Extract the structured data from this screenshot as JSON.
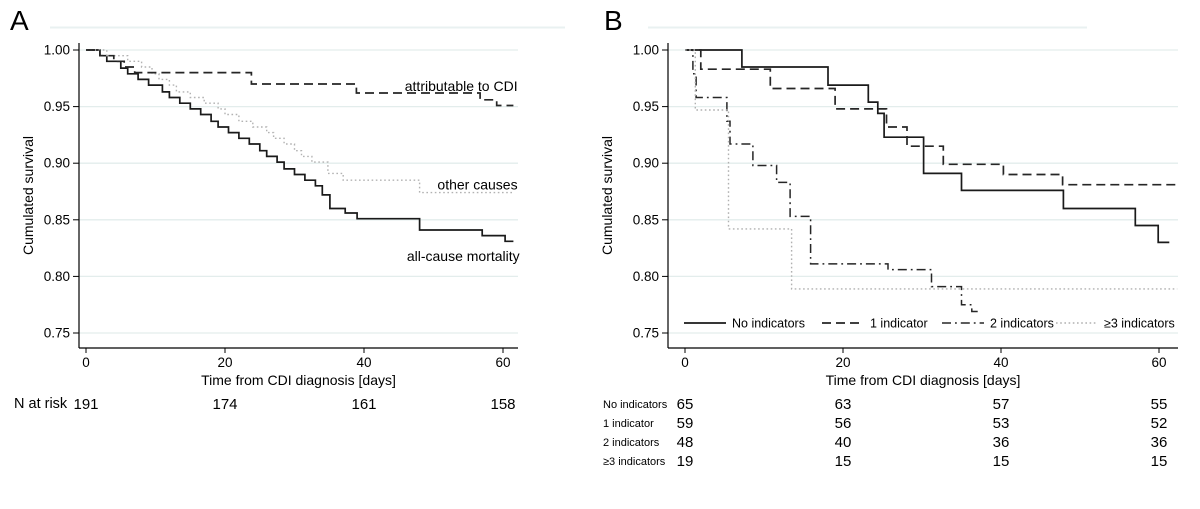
{
  "figure": {
    "background": "#ffffff",
    "grid_color": "#e3edec",
    "rule_color": "#e9f1f1",
    "axis_color": "#000000"
  },
  "chart_data": [
    {
      "type": "line",
      "variant": "kaplan-meier-step",
      "panel_label": "A",
      "ylabel": "Cumulated survival",
      "xlabel": "Time from CDI diagnosis [days]",
      "ylim": [
        0.75,
        1.0
      ],
      "xlim": [
        0,
        62
      ],
      "grid": true,
      "yticks": [
        1.0,
        0.95,
        0.9,
        0.85,
        0.8,
        0.75
      ],
      "ytick_labels": [
        "1.00",
        "0.95",
        "0.90",
        "0.85",
        "0.80",
        "0.75"
      ],
      "xticks": [
        0,
        20,
        40,
        60
      ],
      "xtick_labels": [
        "0",
        "20",
        "40",
        "60"
      ],
      "series": [
        {
          "name": "all-cause mortality",
          "style": "solid",
          "color": "#1a1a1a",
          "width": 1.7,
          "end_day": 61.5,
          "points": [
            [
              0,
              1.0
            ],
            [
              2,
              0.995
            ],
            [
              3,
              0.99
            ],
            [
              5,
              0.984
            ],
            [
              6,
              0.979
            ],
            [
              7.5,
              0.974
            ],
            [
              9,
              0.969
            ],
            [
              11,
              0.963
            ],
            [
              12,
              0.958
            ],
            [
              13.5,
              0.953
            ],
            [
              15,
              0.948
            ],
            [
              16.5,
              0.943
            ],
            [
              18,
              0.937
            ],
            [
              19,
              0.932
            ],
            [
              20.5,
              0.927
            ],
            [
              22,
              0.922
            ],
            [
              23.5,
              0.917
            ],
            [
              25,
              0.911
            ],
            [
              26,
              0.906
            ],
            [
              27.5,
              0.901
            ],
            [
              28.5,
              0.895
            ],
            [
              30,
              0.89
            ],
            [
              31.5,
              0.885
            ],
            [
              33,
              0.88
            ],
            [
              34,
              0.872
            ],
            [
              35.1,
              0.86
            ],
            [
              37.3,
              0.856
            ],
            [
              39,
              0.851
            ],
            [
              48,
              0.841
            ],
            [
              57,
              0.836
            ],
            [
              60.3,
              0.831
            ]
          ]
        },
        {
          "name": "other causes",
          "style": "dotted",
          "color": "#b2b2b2",
          "width": 1.4,
          "end_day": 61.5,
          "points": [
            [
              0,
              1.0
            ],
            [
              3,
              0.995
            ],
            [
              6,
              0.99
            ],
            [
              8,
              0.985
            ],
            [
              9.5,
              0.979
            ],
            [
              10.5,
              0.974
            ],
            [
              12,
              0.969
            ],
            [
              13,
              0.963
            ],
            [
              15,
              0.958
            ],
            [
              17,
              0.953
            ],
            [
              19,
              0.948
            ],
            [
              20,
              0.943
            ],
            [
              22,
              0.937
            ],
            [
              24,
              0.932
            ],
            [
              26,
              0.927
            ],
            [
              27,
              0.922
            ],
            [
              28.5,
              0.917
            ],
            [
              30,
              0.911
            ],
            [
              31,
              0.906
            ],
            [
              32.5,
              0.901
            ],
            [
              34.8,
              0.891
            ],
            [
              37,
              0.885
            ],
            [
              48,
              0.874
            ]
          ]
        },
        {
          "name": "attributable to CDI",
          "style": "dashed",
          "color": "#262626",
          "width": 1.7,
          "end_day": 61.5,
          "points": [
            [
              0,
              1.0
            ],
            [
              2,
              0.995
            ],
            [
              4,
              0.99
            ],
            [
              5.5,
              0.985
            ],
            [
              7,
              0.98
            ],
            [
              23.8,
              0.97
            ],
            [
              38.9,
              0.962
            ],
            [
              56.7,
              0.956
            ],
            [
              59.1,
              0.951
            ]
          ]
        }
      ],
      "annotations": [
        {
          "text": "attributable to CDI",
          "day": 62.1,
          "value": 0.968,
          "anchor": "end"
        },
        {
          "text": "other causes",
          "day": 62.1,
          "value": 0.881,
          "anchor": "end"
        },
        {
          "text": "all-cause mortality",
          "day": 62.4,
          "value": 0.818,
          "anchor": "end"
        }
      ],
      "legend": null,
      "risk_table": {
        "header_label": "N at risk",
        "rows": [
          {
            "label": "",
            "values": [
              "191",
              "174",
              "161",
              "158"
            ]
          }
        ]
      }
    },
    {
      "type": "line",
      "variant": "kaplan-meier-step",
      "panel_label": "B",
      "ylabel": "Cumulated survival",
      "xlabel": "Time from CDI diagnosis [days]",
      "ylim": [
        0.75,
        1.0
      ],
      "xlim": [
        0,
        62
      ],
      "grid": true,
      "yticks": [
        1.0,
        0.95,
        0.9,
        0.85,
        0.8,
        0.75
      ],
      "ytick_labels": [
        "1.00",
        "0.95",
        "0.90",
        "0.85",
        "0.80",
        "0.75"
      ],
      "xticks": [
        0,
        20,
        40,
        60
      ],
      "xtick_labels": [
        "0",
        "20",
        "40",
        "60"
      ],
      "series": [
        {
          "name": "No indicators",
          "style": "solid",
          "color": "#1a1a1a",
          "width": 1.7,
          "end_day": 61.3,
          "points": [
            [
              0,
              1.0
            ],
            [
              7.2,
              0.985
            ],
            [
              18.1,
              0.969
            ],
            [
              23.2,
              0.954
            ],
            [
              24.4,
              0.944
            ],
            [
              25.2,
              0.923
            ],
            [
              30.2,
              0.891
            ],
            [
              35,
              0.876
            ],
            [
              47.9,
              0.86
            ],
            [
              57,
              0.845
            ],
            [
              59.9,
              0.83
            ]
          ]
        },
        {
          "name": "1 indicator",
          "style": "dashed",
          "color": "#262626",
          "width": 1.7,
          "end_day": 62.3,
          "points": [
            [
              0,
              1.0
            ],
            [
              2,
              0.983
            ],
            [
              10.8,
              0.966
            ],
            [
              19,
              0.948
            ],
            [
              25.5,
              0.932
            ],
            [
              28.1,
              0.915
            ],
            [
              32.7,
              0.899
            ],
            [
              40.3,
              0.89
            ],
            [
              47.8,
              0.881
            ]
          ]
        },
        {
          "name": "2 indicators",
          "style": "dashdot",
          "color": "#262626",
          "width": 1.5,
          "end_day": 37.2,
          "points": [
            [
              0,
              1.0
            ],
            [
              1,
              0.979
            ],
            [
              1.4,
              0.958
            ],
            [
              5.3,
              0.937
            ],
            [
              5.7,
              0.917
            ],
            [
              8.6,
              0.898
            ],
            [
              11.6,
              0.883
            ],
            [
              13.3,
              0.853
            ],
            [
              15.9,
              0.811
            ],
            [
              25.7,
              0.806
            ],
            [
              31.2,
              0.791
            ],
            [
              35,
              0.775
            ],
            [
              36.3,
              0.769
            ]
          ]
        },
        {
          "name": "≥3 indicators",
          "style": "dotted",
          "color": "#b0b0b0",
          "width": 1.4,
          "end_day": 62.3,
          "points": [
            [
              0,
              1.0
            ],
            [
              1.3,
              0.947
            ],
            [
              5.5,
              0.842
            ],
            [
              13.5,
              0.789
            ]
          ]
        }
      ],
      "annotations": [],
      "legend": {
        "entries": [
          "No indicators",
          "1 indicator",
          "2 indicators",
          "≥3 indicators"
        ]
      },
      "risk_table": {
        "header_label": "",
        "rows": [
          {
            "label": "No indicators",
            "values": [
              "65",
              "63",
              "57",
              "55"
            ]
          },
          {
            "label": "1 indicator",
            "values": [
              "59",
              "56",
              "53",
              "52"
            ]
          },
          {
            "label": "2 indicators",
            "values": [
              "48",
              "40",
              "36",
              "36"
            ]
          },
          {
            "label": "≥3 indicators",
            "values": [
              "19",
              "15",
              "15",
              "15"
            ]
          }
        ]
      }
    }
  ]
}
